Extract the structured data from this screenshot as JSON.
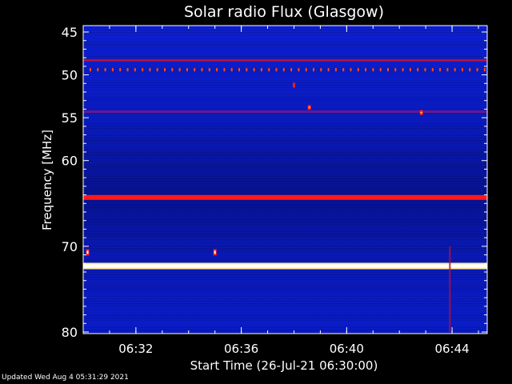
{
  "chart_data": {
    "type": "heatmap",
    "title": "Solar radio Flux (Glasgow)",
    "xlabel": "Start Time (26-Jul-21 06:30:00)",
    "ylabel": "Frequency [MHz]",
    "x_ticks": [
      "06:32",
      "06:36",
      "06:40",
      "06:44"
    ],
    "y_ticks": [
      "45",
      "50",
      "55",
      "60",
      "70",
      "80"
    ],
    "y_range_mhz": [
      45,
      80
    ],
    "x_range": [
      "06:30:00",
      "06:45:20"
    ],
    "features": [
      {
        "kind": "band",
        "freq_mhz": 48.3,
        "level": "medium"
      },
      {
        "kind": "band",
        "freq_mhz": 54.3,
        "level": "low"
      },
      {
        "kind": "band",
        "freq_mhz": 64.3,
        "level": "high"
      },
      {
        "kind": "band",
        "freq_mhz": 72.3,
        "level": "very-high"
      },
      {
        "kind": "dotted-band",
        "freq_mhz": 49.4,
        "level": "medium"
      },
      {
        "kind": "spot",
        "time": "06:38:00",
        "freq_mhz": 51.2,
        "level": "medium"
      },
      {
        "kind": "spot",
        "time": "06:38:35",
        "freq_mhz": 53.8,
        "level": "high"
      },
      {
        "kind": "spot",
        "time": "06:42:50",
        "freq_mhz": 54.4,
        "level": "high"
      },
      {
        "kind": "spot",
        "time": "06:30:10",
        "freq_mhz": 70.7,
        "level": "very-high"
      },
      {
        "kind": "spot",
        "time": "06:35:00",
        "freq_mhz": 70.7,
        "level": "very-high"
      },
      {
        "kind": "vertical-streak",
        "time": "06:43:55",
        "freq_from_mhz": 70.0,
        "freq_to_mhz": 80.0,
        "level": "medium"
      }
    ],
    "colors": {
      "background": "#000000",
      "low": "#0a1ab8",
      "medium": "#ff1a1a",
      "high": "#ffffff"
    }
  },
  "footer": {
    "updated": "Updated Wed Aug  4 05:31:29 2021"
  }
}
